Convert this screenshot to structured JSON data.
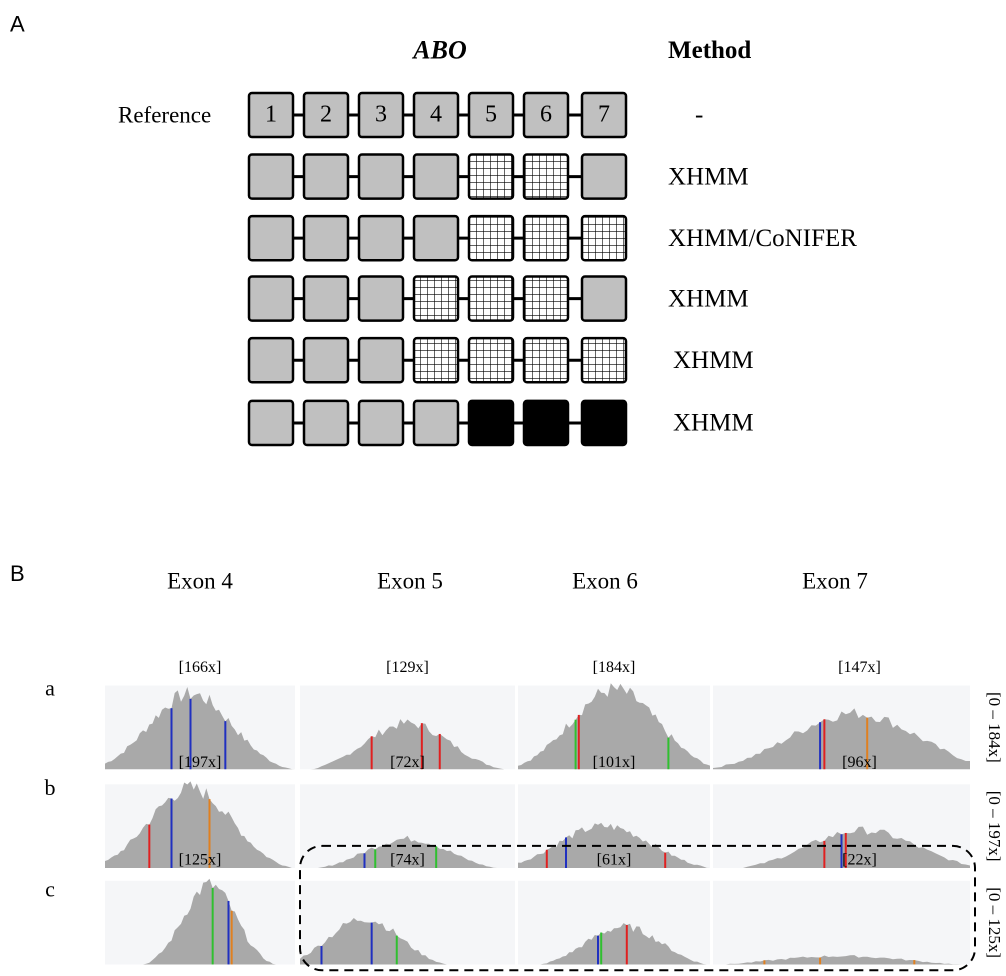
{
  "panel_a": {
    "label": "A",
    "gene": "ABO",
    "method_header": "Method",
    "reference_label": "Reference",
    "exons": [
      "1",
      "2",
      "3",
      "4",
      "5",
      "6",
      "7"
    ],
    "methods": [
      "-",
      "XHMM",
      "XHMM/CoNIFER",
      "XHMM",
      "XHMM",
      "XHMM"
    ]
  },
  "panel_b": {
    "label": "B",
    "exons": [
      "Exon 4",
      "Exon 5",
      "Exon 6",
      "Exon 7"
    ],
    "rows": [
      {
        "label": "a",
        "depths": [
          "[166x]",
          "[129x]",
          "[184x]",
          "[147x]"
        ],
        "range": "[0 – 184x]"
      },
      {
        "label": "b",
        "depths": [
          "[197x]",
          "[72x]",
          "[101x]",
          "[96x]"
        ],
        "range": "[0 – 197x]"
      },
      {
        "label": "c",
        "depths": [
          "[125x]",
          "[74x]",
          "[61x]",
          "[22x]"
        ],
        "range": "[0 – 125x]"
      }
    ]
  }
}
